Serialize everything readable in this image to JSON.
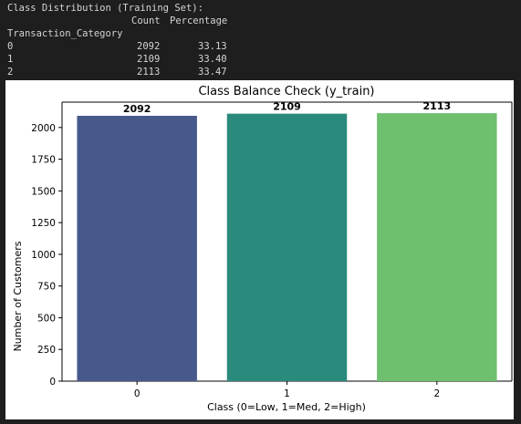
{
  "console": {
    "heading": "Class Distribution (Training Set):",
    "columns": [
      "Count",
      "Percentage"
    ],
    "index_label": "Transaction_Category",
    "rows": [
      {
        "index": "0",
        "count": "2092",
        "percentage": "33.13"
      },
      {
        "index": "1",
        "count": "2109",
        "percentage": "33.40"
      },
      {
        "index": "2",
        "count": "2113",
        "percentage": "33.47"
      }
    ]
  },
  "chart_data": {
    "type": "bar",
    "title": "Class Balance Check (y_train)",
    "xlabel": "Class (0=Low, 1=Med, 2=High)",
    "ylabel": "Number of Customers",
    "categories": [
      "0",
      "1",
      "2"
    ],
    "values": [
      2092,
      2109,
      2113
    ],
    "data_labels": [
      "2092",
      "2109",
      "2113"
    ],
    "colors": [
      "#46598a",
      "#2a8a7c",
      "#6ec06e"
    ],
    "yticks": [
      0,
      250,
      500,
      750,
      1000,
      1250,
      1500,
      1750,
      2000
    ],
    "ylim": [
      0,
      2200
    ],
    "grid": false,
    "legend": "none"
  }
}
